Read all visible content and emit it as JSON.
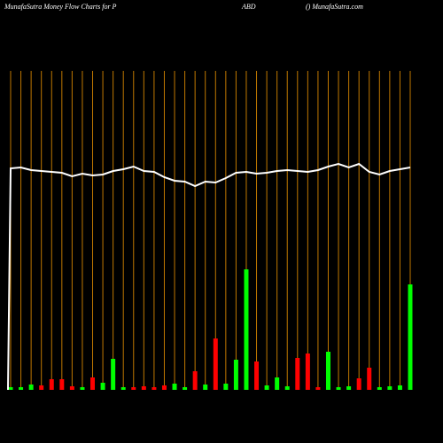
{
  "chart_data": {
    "type": "money-flow",
    "title_parts": [
      "MunafaSutra  Money Flow  Charts for P",
      "ABD",
      "() MunafaSutra.com"
    ],
    "categories": [
      null,
      null,
      null,
      null,
      null,
      null,
      null,
      null,
      null,
      null,
      null,
      null,
      null,
      null,
      null,
      null,
      null,
      null,
      null,
      null,
      null,
      null,
      null,
      null,
      null,
      null,
      null,
      null,
      null,
      null,
      null,
      null,
      null,
      null,
      null,
      null,
      null,
      null,
      null,
      null
    ],
    "bars": {
      "values": [
        3,
        3,
        6,
        5,
        12,
        12,
        4,
        3,
        14,
        8,
        35,
        3,
        3,
        4,
        3,
        5,
        7,
        3,
        21,
        6,
        58,
        7,
        34,
        136,
        32,
        5,
        14,
        4,
        36,
        41,
        3,
        43,
        3,
        4,
        13,
        25,
        3,
        4,
        5,
        119
      ],
      "colors": [
        "#00ff00",
        "#00ff00",
        "#00ff00",
        "#ff0000",
        "#ff0000",
        "#ff0000",
        "#ff0000",
        "#00ff00",
        "#ff0000",
        "#00ff00",
        "#00ff00",
        "#00ff00",
        "#ff0000",
        "#ff0000",
        "#ff0000",
        "#ff0000",
        "#00ff00",
        "#00ff00",
        "#ff0000",
        "#00ff00",
        "#ff0000",
        "#00ff00",
        "#00ff00",
        "#00ff00",
        "#ff0000",
        "#00ff00",
        "#00ff00",
        "#00ff00",
        "#ff0000",
        "#ff0000",
        "#ff0000",
        "#00ff00",
        "#00ff00",
        "#00ff00",
        "#ff0000",
        "#ff0000",
        "#00ff00",
        "#00ff00",
        "#00ff00",
        "#00ff00"
      ]
    },
    "line": {
      "color": "#ffffff",
      "values": [
        250,
        251,
        248,
        247,
        246,
        245,
        241,
        244,
        242,
        243,
        247,
        249,
        252,
        247,
        246,
        240,
        236,
        235,
        230,
        235,
        234,
        239,
        245,
        246,
        244,
        245,
        247,
        248,
        247,
        246,
        248,
        252,
        255,
        251,
        255,
        246,
        243,
        247,
        249,
        251
      ]
    },
    "ylim": [
      0,
      360
    ],
    "grid_color": "#c07800"
  }
}
